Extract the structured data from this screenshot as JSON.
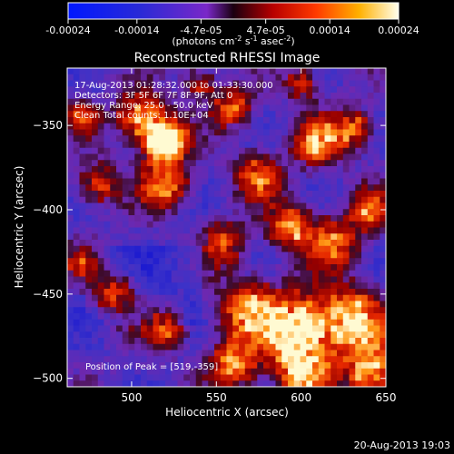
{
  "chart_data": {
    "type": "heatmap",
    "title": "Reconstructed RHESSI Image",
    "xlabel": "Heliocentric X (arcsec)",
    "ylabel": "Heliocentric Y (arcsec)",
    "xlim": [
      462,
      650
    ],
    "ylim": [
      -505,
      -316
    ],
    "x_ticks": [
      500,
      550,
      600,
      650
    ],
    "y_ticks": [
      -350,
      -400,
      -450,
      -500
    ],
    "colorbar": {
      "min": -0.00024,
      "max": 0.00024,
      "ticks": [
        "-0.00024",
        "-0.00014",
        "-4.7e-05",
        "4.7e-05",
        "0.00014",
        "0.00024"
      ],
      "tick_values": [
        -0.00024,
        -0.00014,
        -4.7e-05,
        4.7e-05,
        0.00014,
        0.00024
      ],
      "unit_parts": [
        "(photons cm",
        "-2",
        " s",
        "-1",
        " asec",
        "-2",
        ")"
      ]
    },
    "annotations": {
      "time": "17-Aug-2013 01:28:32.000 to 01:33:30.000",
      "detectors": "Detectors: 3F 5F 6F 7F 8F 9F, Att 0",
      "energy": "Energy Range: 25.0 - 50.0 keV",
      "clean": "Clean     Total counts: 1.10E+04",
      "peak": "Position of Peak = [519,-359]"
    },
    "peak": [
      519,
      -359
    ],
    "footer": "20-Aug-2013 19:03"
  }
}
